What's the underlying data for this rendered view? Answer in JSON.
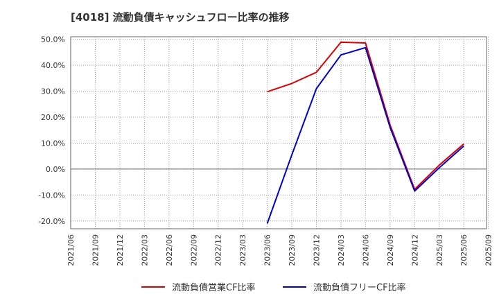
{
  "chart_data": {
    "type": "line",
    "title": "[4018]  流動負債キャッシュフロー比率の推移",
    "xlabel": "",
    "ylabel": "",
    "x_ticks": [
      "2021/06",
      "2021/09",
      "2021/12",
      "2022/03",
      "2022/06",
      "2022/09",
      "2022/12",
      "2023/03",
      "2023/06",
      "2023/09",
      "2023/12",
      "2024/03",
      "2024/06",
      "2024/09",
      "2024/12",
      "2025/03",
      "2025/06",
      "2025/09"
    ],
    "y_ticks": [
      "50.0%",
      "40.0%",
      "30.0%",
      "20.0%",
      "10.0%",
      "0.0%",
      "-10.0%",
      "-20.0%"
    ],
    "y_tick_values": [
      50,
      40,
      30,
      20,
      10,
      0,
      -10,
      -20
    ],
    "ylim": [
      -23,
      51
    ],
    "x_categories": [
      "2023/06",
      "2023/09",
      "2023/12",
      "2024/03",
      "2024/06",
      "2024/09",
      "2024/12",
      "2025/03",
      "2025/06"
    ],
    "series": [
      {
        "name": "流動負債営業CF比率",
        "color": "#dd0000",
        "start_index": 8,
        "values": [
          29.8,
          33.0,
          37.3,
          48.9,
          48.6,
          17.0,
          -7.8,
          1.5,
          9.7
        ]
      },
      {
        "name": "流動負債フリーCF比率",
        "color": "#0000cc",
        "start_index": 8,
        "values": [
          -21.0,
          5.5,
          31.0,
          44.0,
          46.8,
          16.0,
          -8.5,
          0.5,
          8.9
        ]
      }
    ],
    "grid": true,
    "legend": "bottom"
  }
}
